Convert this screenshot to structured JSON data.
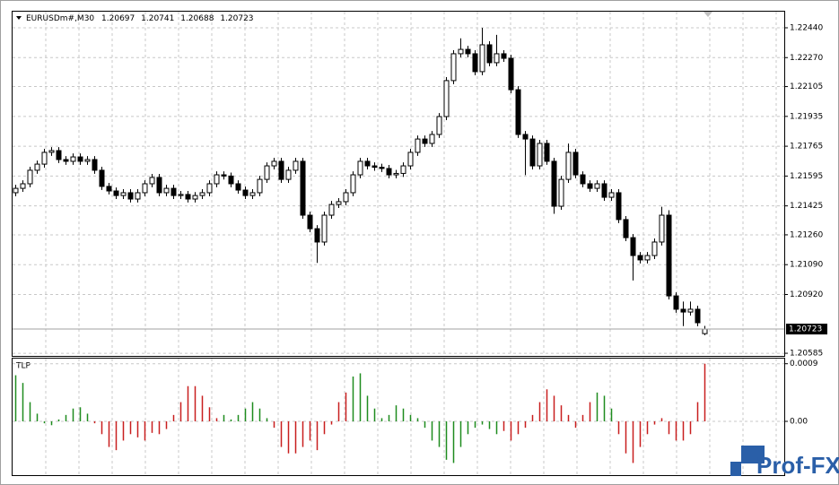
{
  "header": {
    "symbol": "EURUSDm#,M30",
    "ohlc": [
      1.20697,
      1.20741,
      1.20688,
      1.20723
    ]
  },
  "watermark": "Prof-FX",
  "chart_data": [
    {
      "type": "candlestick",
      "ylim": [
        1.2057,
        1.22537
      ],
      "yticks": [
        {
          "value": 1.2244,
          "label": "1.22440"
        },
        {
          "value": 1.2227,
          "label": "1.22270"
        },
        1.22105,
        1.21935,
        1.21765,
        1.21595,
        1.21425,
        {
          "value": 1.2126,
          "label": "1.21260"
        },
        {
          "value": 1.2109,
          "label": "1.21090"
        },
        {
          "value": 1.2092,
          "label": "1.20920"
        },
        1.20585
      ],
      "grid": true,
      "last_price": 1.20723,
      "up_color": "#ffffff",
      "down_color": "#000000",
      "outline_color": "#000000",
      "candles": [
        [
          1.215,
          1.21545,
          1.2148,
          1.21525
        ],
        [
          1.21525,
          1.21571,
          1.21505,
          1.21551
        ],
        [
          1.21551,
          1.21648,
          1.21531,
          1.21628
        ],
        [
          1.21628,
          1.21683,
          1.21608,
          1.21663
        ],
        [
          1.21663,
          1.2175,
          1.21643,
          1.2173
        ],
        [
          1.2173,
          1.2176,
          1.2171,
          1.2174
        ],
        [
          1.2174,
          1.2176,
          1.21669,
          1.21689
        ],
        [
          1.21689,
          1.21709,
          1.21659,
          1.21679
        ],
        [
          1.21679,
          1.21724,
          1.21659,
          1.21704
        ],
        [
          1.21704,
          1.21724,
          1.21659,
          1.21679
        ],
        [
          1.21679,
          1.21709,
          1.21659,
          1.21689
        ],
        [
          1.21689,
          1.21709,
          1.21608,
          1.21628
        ],
        [
          1.21628,
          1.21648,
          1.21516,
          1.21536
        ],
        [
          1.21536,
          1.21556,
          1.2149,
          1.2151
        ],
        [
          1.2151,
          1.2153,
          1.21464,
          1.21484
        ],
        [
          1.21484,
          1.2152,
          1.21464,
          1.215
        ],
        [
          1.215,
          1.2152,
          1.21444,
          1.21464
        ],
        [
          1.21464,
          1.2152,
          1.21444,
          1.215
        ],
        [
          1.215,
          1.21571,
          1.2148,
          1.21551
        ],
        [
          1.21551,
          1.21607,
          1.21531,
          1.21587
        ],
        [
          1.21587,
          1.21607,
          1.2148,
          1.215
        ],
        [
          1.215,
          1.21545,
          1.2148,
          1.21525
        ],
        [
          1.21525,
          1.21545,
          1.21464,
          1.21484
        ],
        [
          1.21484,
          1.2151,
          1.21464,
          1.2149
        ],
        [
          1.2149,
          1.2151,
          1.21444,
          1.21464
        ],
        [
          1.21464,
          1.21504,
          1.21444,
          1.21484
        ],
        [
          1.21484,
          1.2152,
          1.21464,
          1.215
        ],
        [
          1.215,
          1.21571,
          1.2148,
          1.21551
        ],
        [
          1.21551,
          1.21622,
          1.21531,
          1.21602
        ],
        [
          1.21602,
          1.21622,
          1.21575,
          1.21595
        ],
        [
          1.21595,
          1.21615,
          1.21531,
          1.21551
        ],
        [
          1.21551,
          1.21571,
          1.21495,
          1.21515
        ],
        [
          1.21515,
          1.21535,
          1.21464,
          1.21484
        ],
        [
          1.21484,
          1.2152,
          1.21464,
          1.215
        ],
        [
          1.215,
          1.21596,
          1.2148,
          1.21576
        ],
        [
          1.21576,
          1.21673,
          1.21556,
          1.21653
        ],
        [
          1.21653,
          1.21699,
          1.21633,
          1.21679
        ],
        [
          1.21679,
          1.21699,
          1.21556,
          1.21576
        ],
        [
          1.21576,
          1.21648,
          1.21556,
          1.21628
        ],
        [
          1.21628,
          1.21699,
          1.21608,
          1.21679
        ],
        [
          1.21679,
          1.21699,
          1.21352,
          1.21372
        ],
        [
          1.21372,
          1.21392,
          1.21275,
          1.21295
        ],
        [
          1.21295,
          1.21315,
          1.211,
          1.21219
        ],
        [
          1.21219,
          1.21392,
          1.21199,
          1.21372
        ],
        [
          1.21372,
          1.21453,
          1.21352,
          1.21433
        ],
        [
          1.21433,
          1.21469,
          1.21413,
          1.21449
        ],
        [
          1.21449,
          1.2152,
          1.21429,
          1.215
        ],
        [
          1.215,
          1.21622,
          1.2148,
          1.21602
        ],
        [
          1.21602,
          1.21699,
          1.21582,
          1.21679
        ],
        [
          1.21679,
          1.21699,
          1.21633,
          1.21653
        ],
        [
          1.21653,
          1.21673,
          1.21625,
          1.21645
        ],
        [
          1.21645,
          1.21665,
          1.21618,
          1.21638
        ],
        [
          1.21638,
          1.21658,
          1.21582,
          1.21602
        ],
        [
          1.21602,
          1.2163,
          1.21582,
          1.2161
        ],
        [
          1.2161,
          1.21673,
          1.2159,
          1.21653
        ],
        [
          1.21653,
          1.2175,
          1.21633,
          1.2173
        ],
        [
          1.2173,
          1.21826,
          1.2171,
          1.21806
        ],
        [
          1.21806,
          1.21826,
          1.21761,
          1.21781
        ],
        [
          1.21781,
          1.21852,
          1.21761,
          1.21832
        ],
        [
          1.21832,
          1.21954,
          1.21812,
          1.21934
        ],
        [
          1.21934,
          1.22159,
          1.21914,
          1.22139
        ],
        [
          1.22139,
          1.22312,
          1.22119,
          1.22292
        ],
        [
          1.22292,
          1.2238,
          1.22272,
          1.22317
        ],
        [
          1.22317,
          1.22337,
          1.22272,
          1.22292
        ],
        [
          1.22292,
          1.22312,
          1.2217,
          1.2219
        ],
        [
          1.2219,
          1.2244,
          1.2217,
          1.22343
        ],
        [
          1.22343,
          1.22363,
          1.22221,
          1.22241
        ],
        [
          1.22241,
          1.224,
          1.22221,
          1.22292
        ],
        [
          1.22292,
          1.22312,
          1.22246,
          1.22266
        ],
        [
          1.22266,
          1.22286,
          1.22067,
          1.22087
        ],
        [
          1.22087,
          1.22107,
          1.21812,
          1.21832
        ],
        [
          1.21832,
          1.21852,
          1.216,
          1.21806
        ],
        [
          1.21806,
          1.21826,
          1.21633,
          1.21653
        ],
        [
          1.21653,
          1.21801,
          1.21633,
          1.21781
        ],
        [
          1.21781,
          1.21801,
          1.21659,
          1.21679
        ],
        [
          1.21679,
          1.21699,
          1.2138,
          1.21423
        ],
        [
          1.21423,
          1.21596,
          1.21403,
          1.21576
        ],
        [
          1.21576,
          1.2178,
          1.21556,
          1.2173
        ],
        [
          1.2173,
          1.2175,
          1.21582,
          1.21602
        ],
        [
          1.21602,
          1.21622,
          1.21531,
          1.21551
        ],
        [
          1.21551,
          1.21571,
          1.21505,
          1.21525
        ],
        [
          1.21525,
          1.21571,
          1.21505,
          1.21551
        ],
        [
          1.21551,
          1.21571,
          1.21454,
          1.21474
        ],
        [
          1.21474,
          1.2152,
          1.21454,
          1.215
        ],
        [
          1.215,
          1.2152,
          1.21327,
          1.21347
        ],
        [
          1.21347,
          1.21367,
          1.21224,
          1.21244
        ],
        [
          1.21244,
          1.21264,
          1.21,
          1.21142
        ],
        [
          1.21142,
          1.21162,
          1.21097,
          1.21117
        ],
        [
          1.21117,
          1.21162,
          1.21097,
          1.21142
        ],
        [
          1.21142,
          1.21239,
          1.21122,
          1.21219
        ],
        [
          1.21219,
          1.2142,
          1.21199,
          1.21372
        ],
        [
          1.21372,
          1.214,
          1.20892,
          1.20912
        ],
        [
          1.20912,
          1.20932,
          1.20816,
          1.20836
        ],
        [
          1.20836,
          1.2088,
          1.2074,
          1.2082
        ],
        [
          1.2082,
          1.2088,
          1.208,
          1.20836
        ],
        [
          1.20836,
          1.20856,
          1.20739,
          1.20759
        ],
        [
          1.20697,
          1.20741,
          1.20688,
          1.20723
        ]
      ]
    },
    {
      "type": "bar",
      "title": "TLP",
      "ylim": [
        -0.00084,
        0.00098
      ],
      "yticks": [
        0.0009,
        {
          "value": 0,
          "label": "0.00"
        }
      ],
      "grid": true,
      "series": [
        {
          "color": "#1e8c1e",
          "values": [
            0.00072,
            0.0006,
            0.0003,
            0.00012,
            -3e-05,
            -6e-05,
            3e-05,
            0.0001,
            0.0002,
            0.00022,
            0.00012,
            null,
            null,
            null,
            null,
            null,
            null,
            null,
            null,
            null,
            null,
            null,
            null,
            null,
            null,
            null,
            null,
            null,
            null,
            0.0001,
            3e-05,
            0.0001,
            0.0002,
            0.0003,
            0.0002,
            5e-05,
            null,
            null,
            null,
            null,
            null,
            null,
            null,
            null,
            null,
            null,
            null,
            0.0007,
            0.00075,
            0.0004,
            0.0002,
            5e-05,
            0.0001,
            0.00025,
            0.0002,
            0.0001,
            5e-05,
            -0.0001,
            -0.0003,
            -0.0004,
            -0.0006,
            -0.00065,
            -0.0004,
            -0.0002,
            -0.0001,
            -5e-05,
            -0.00012,
            -0.0002,
            null,
            null,
            null,
            null,
            null,
            null,
            null,
            null,
            null,
            null,
            null,
            null,
            null,
            0.00045,
            0.0004,
            0.0002,
            null,
            null,
            null,
            null,
            null,
            null,
            null,
            null,
            null,
            null,
            null,
            null,
            null
          ]
        },
        {
          "color": "#c81e1e",
          "values": [
            null,
            null,
            null,
            null,
            null,
            null,
            null,
            null,
            null,
            null,
            null,
            -3e-05,
            -0.0002,
            -0.0004,
            -0.00045,
            -0.0003,
            -0.0002,
            -0.00025,
            -0.0003,
            -0.00018,
            -0.0002,
            -0.00012,
            0.0001,
            0.0003,
            0.00055,
            0.00055,
            0.0004,
            0.00022,
            5e-05,
            null,
            null,
            null,
            null,
            null,
            null,
            null,
            -0.0001,
            -0.0004,
            -0.0005,
            -0.0005,
            -0.0004,
            -0.0003,
            -0.00045,
            -0.0002,
            -5e-05,
            0.0003,
            0.00045,
            null,
            null,
            null,
            null,
            null,
            null,
            null,
            null,
            null,
            null,
            null,
            null,
            null,
            null,
            null,
            null,
            null,
            null,
            null,
            null,
            null,
            -0.00015,
            -0.0003,
            -0.0002,
            -0.0001,
            0.0001,
            0.0003,
            0.0005,
            0.0004,
            0.00025,
            0.0001,
            -0.0001,
            0.0001,
            0.0003,
            null,
            null,
            null,
            -0.0002,
            -0.0005,
            -0.00065,
            -0.0004,
            -0.0002,
            -5e-05,
            5e-05,
            -0.0002,
            -0.0003,
            -0.0003,
            -0.0002,
            0.0003,
            0.0009
          ]
        }
      ]
    }
  ]
}
